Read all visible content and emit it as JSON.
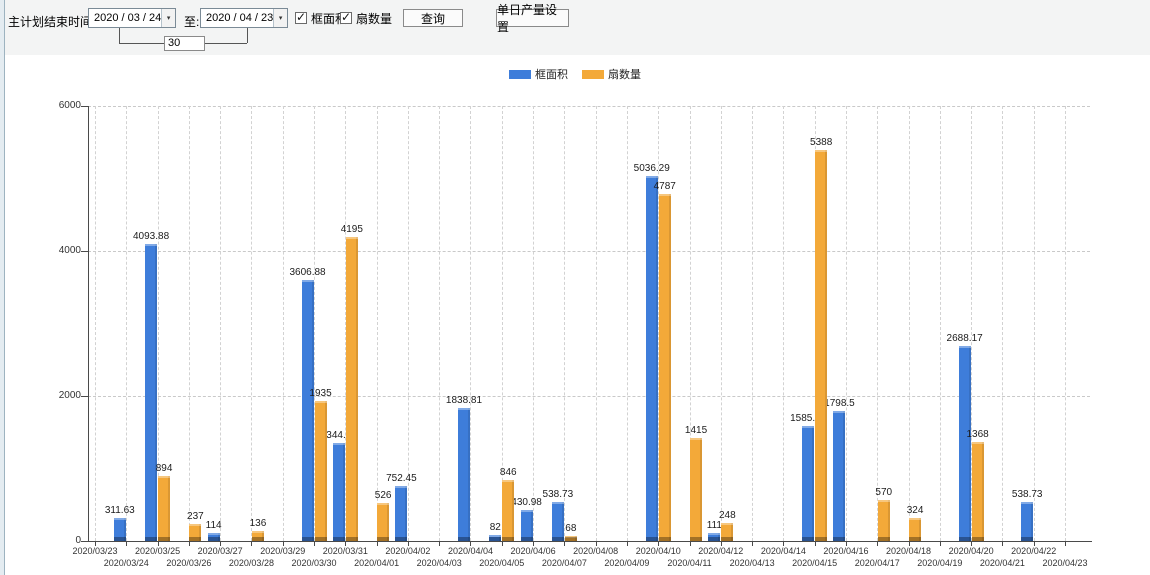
{
  "toolbar": {
    "end_time_label": "主计划结束时间:",
    "start_date": "2020 / 03 / 24",
    "to_label": "至:",
    "end_date": "2020 / 04 / 23",
    "interval_days": "30",
    "checkbox_frame_area": "框面积",
    "checkbox_fan_count": "扇数量",
    "query_button": "查询",
    "daily_output_button": "单日产量设置",
    "dropdown_icon": "▾",
    "check_icon": "✓"
  },
  "legend": {
    "items": [
      {
        "label": "框面积",
        "color": "#3e7dda"
      },
      {
        "label": "扇数量",
        "color": "#f3a939"
      }
    ]
  },
  "chart_data": {
    "type": "bar",
    "title": "",
    "xlabel": "",
    "ylabel": "",
    "ylim": [
      0,
      6000
    ],
    "yticks": [
      0,
      2000,
      4000,
      6000
    ],
    "grid": true,
    "legend_position": "top-center",
    "categories": [
      "2020/03/23",
      "2020/03/24",
      "2020/03/25",
      "2020/03/26",
      "2020/03/27",
      "2020/03/28",
      "2020/03/29",
      "2020/03/30",
      "2020/03/31",
      "2020/04/01",
      "2020/04/02",
      "2020/04/03",
      "2020/04/04",
      "2020/04/05",
      "2020/04/06",
      "2020/04/07",
      "2020/04/08",
      "2020/04/09",
      "2020/04/10",
      "2020/04/11",
      "2020/04/12",
      "2020/04/13",
      "2020/04/14",
      "2020/04/15",
      "2020/04/16",
      "2020/04/17",
      "2020/04/18",
      "2020/04/19",
      "2020/04/20",
      "2020/04/21",
      "2020/04/22",
      "2020/04/23"
    ],
    "series": [
      {
        "name": "框面积",
        "color": "#3e7dda",
        "values": [
          null,
          311.63,
          4093.88,
          null,
          114,
          null,
          null,
          3606.88,
          1344.95,
          null,
          752.45,
          null,
          1838.81,
          82,
          430.98,
          538.73,
          null,
          null,
          5036.29,
          null,
          111,
          null,
          null,
          1585.96,
          1798.5,
          null,
          null,
          null,
          2688.17,
          null,
          538.73,
          null
        ]
      },
      {
        "name": "扇数量",
        "color": "#f3a939",
        "values": [
          null,
          null,
          894,
          237,
          null,
          136,
          null,
          1935,
          4195,
          526,
          null,
          null,
          null,
          846,
          null,
          68,
          null,
          null,
          4787,
          1415,
          248,
          null,
          null,
          5388,
          null,
          570,
          324,
          null,
          1368,
          null,
          null,
          null
        ]
      }
    ]
  }
}
